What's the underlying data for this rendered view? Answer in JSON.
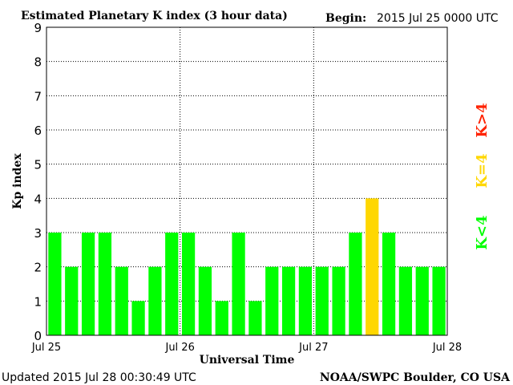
{
  "title": "Estimated Planetary K index (3 hour data)",
  "begin": {
    "label": "Begin:",
    "value": "2015 Jul 25 0000 UTC"
  },
  "updated": "Updated 2015 Jul 28 00:30:49 UTC",
  "credit": "NOAA/SWPC Boulder, CO USA",
  "colors": {
    "green": "#00ff00",
    "yellow": "#ffd700",
    "red": "#ff2200"
  },
  "chart_data": {
    "type": "bar",
    "title": "Estimated Planetary K index (3 hour data)",
    "xlabel": "Universal Time",
    "ylabel": "Kp index",
    "ylim": [
      0,
      9
    ],
    "yticks": [
      0,
      1,
      2,
      3,
      4,
      5,
      6,
      7,
      8,
      9
    ],
    "xticks": [
      {
        "label": "Jul 25",
        "index": 0
      },
      {
        "label": "Jul 26",
        "index": 8
      },
      {
        "label": "Jul 27",
        "index": 16
      },
      {
        "label": "Jul 28",
        "index": 24
      }
    ],
    "grid": true,
    "bar_interval": "3 hour",
    "values": [
      3,
      2,
      3,
      3,
      2,
      1,
      2,
      3,
      3,
      2,
      1,
      3,
      1,
      2,
      2,
      2,
      2,
      2,
      3,
      4,
      3,
      2,
      2,
      2
    ],
    "color_rule": "K<4 green, K=4 yellow, K>4 red",
    "legend": [
      {
        "label": "K<4",
        "color": "#00ff00"
      },
      {
        "label": "K=4",
        "color": "#ffd700"
      },
      {
        "label": "K>4",
        "color": "#ff2200"
      }
    ]
  }
}
